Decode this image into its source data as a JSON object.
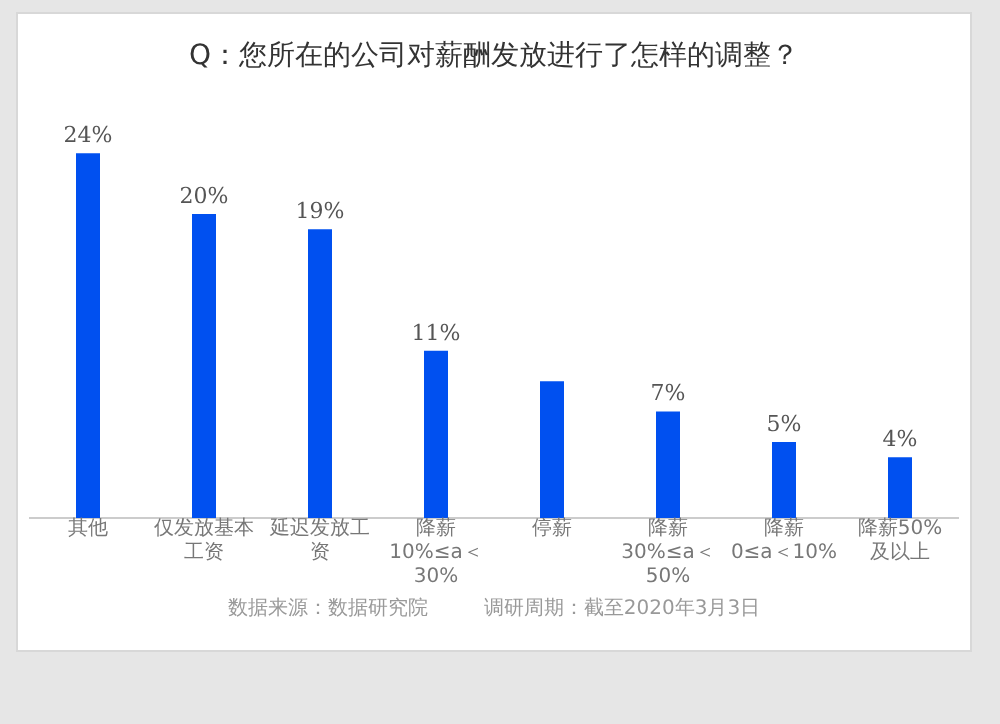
{
  "chart_data": {
    "type": "bar",
    "title": "Q：您所在的公司对薪酬发放进行了怎样的调整？",
    "categories": [
      "其他",
      "仅发放基本工资",
      "延迟发放工资",
      "降薪\n10%≤a＜30%",
      "停薪",
      "降薪\n30%≤a＜50%",
      "降薪\n0≤a＜10%",
      "降薪50%\n及以上"
    ],
    "values": [
      24,
      20,
      19,
      11,
      9,
      7,
      5,
      4
    ],
    "value_labels": [
      "24%",
      "20%",
      "19%",
      "11%",
      null,
      "7%",
      "5%",
      "4%"
    ],
    "color": "#0050f0",
    "grid": false,
    "legend": false,
    "annotations": [
      "数据来源：数据研究院",
      "调研周期：截至2020年3月3日"
    ]
  }
}
